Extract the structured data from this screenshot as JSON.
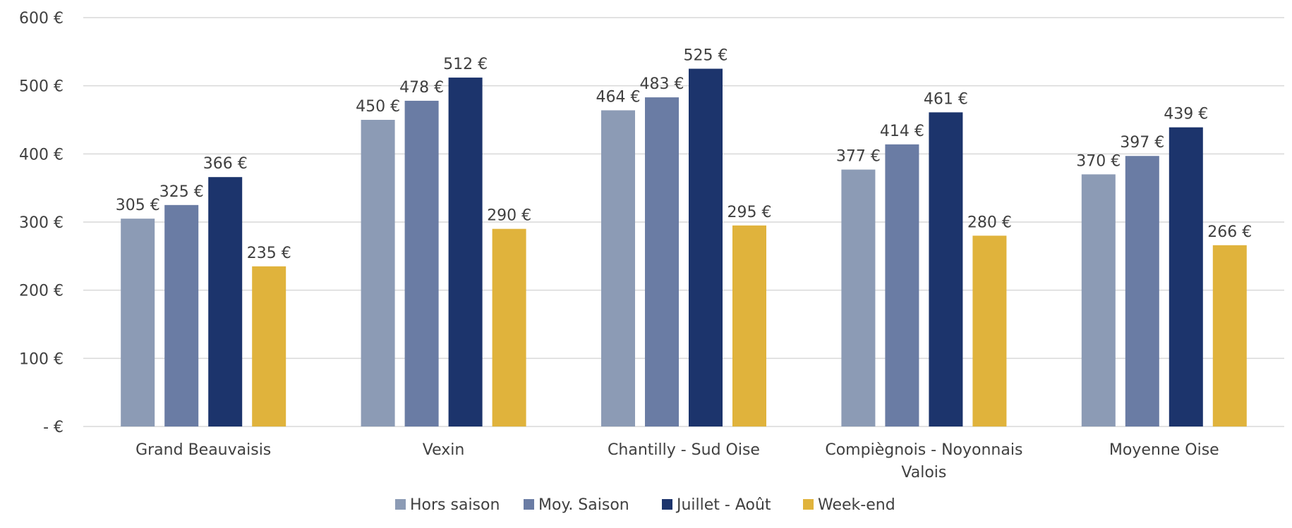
{
  "chart_data": {
    "type": "bar",
    "title": "",
    "xlabel": "",
    "ylabel": "",
    "categories": [
      [
        "Grand Beauvaisis"
      ],
      [
        "Vexin"
      ],
      [
        "Chantilly - Sud Oise"
      ],
      [
        "Compiègnois - Noyonnais",
        "Valois"
      ],
      [
        "Moyenne Oise"
      ]
    ],
    "series": [
      {
        "name": "Hors saison",
        "color": "#8c9bb5",
        "values": [
          305,
          450,
          464,
          377,
          370
        ]
      },
      {
        "name": "Moy. Saison",
        "color": "#6a7ca4",
        "values": [
          325,
          478,
          483,
          414,
          397
        ]
      },
      {
        "name": "Juillet - Août",
        "color": "#1c346c",
        "values": [
          366,
          512,
          525,
          461,
          439
        ]
      },
      {
        "name": "Week-end",
        "color": "#e0b33c",
        "values": [
          235,
          290,
          295,
          280,
          266
        ]
      }
    ],
    "ylim": [
      0,
      600
    ],
    "yticks": [
      0,
      100,
      200,
      300,
      400,
      500,
      600
    ],
    "ytick_labels": [
      "-   €",
      "100  €",
      "200  €",
      "300  €",
      "400  €",
      "500  €",
      "600  €"
    ],
    "value_suffix": "  €",
    "grid": true,
    "legend_position": "bottom"
  }
}
